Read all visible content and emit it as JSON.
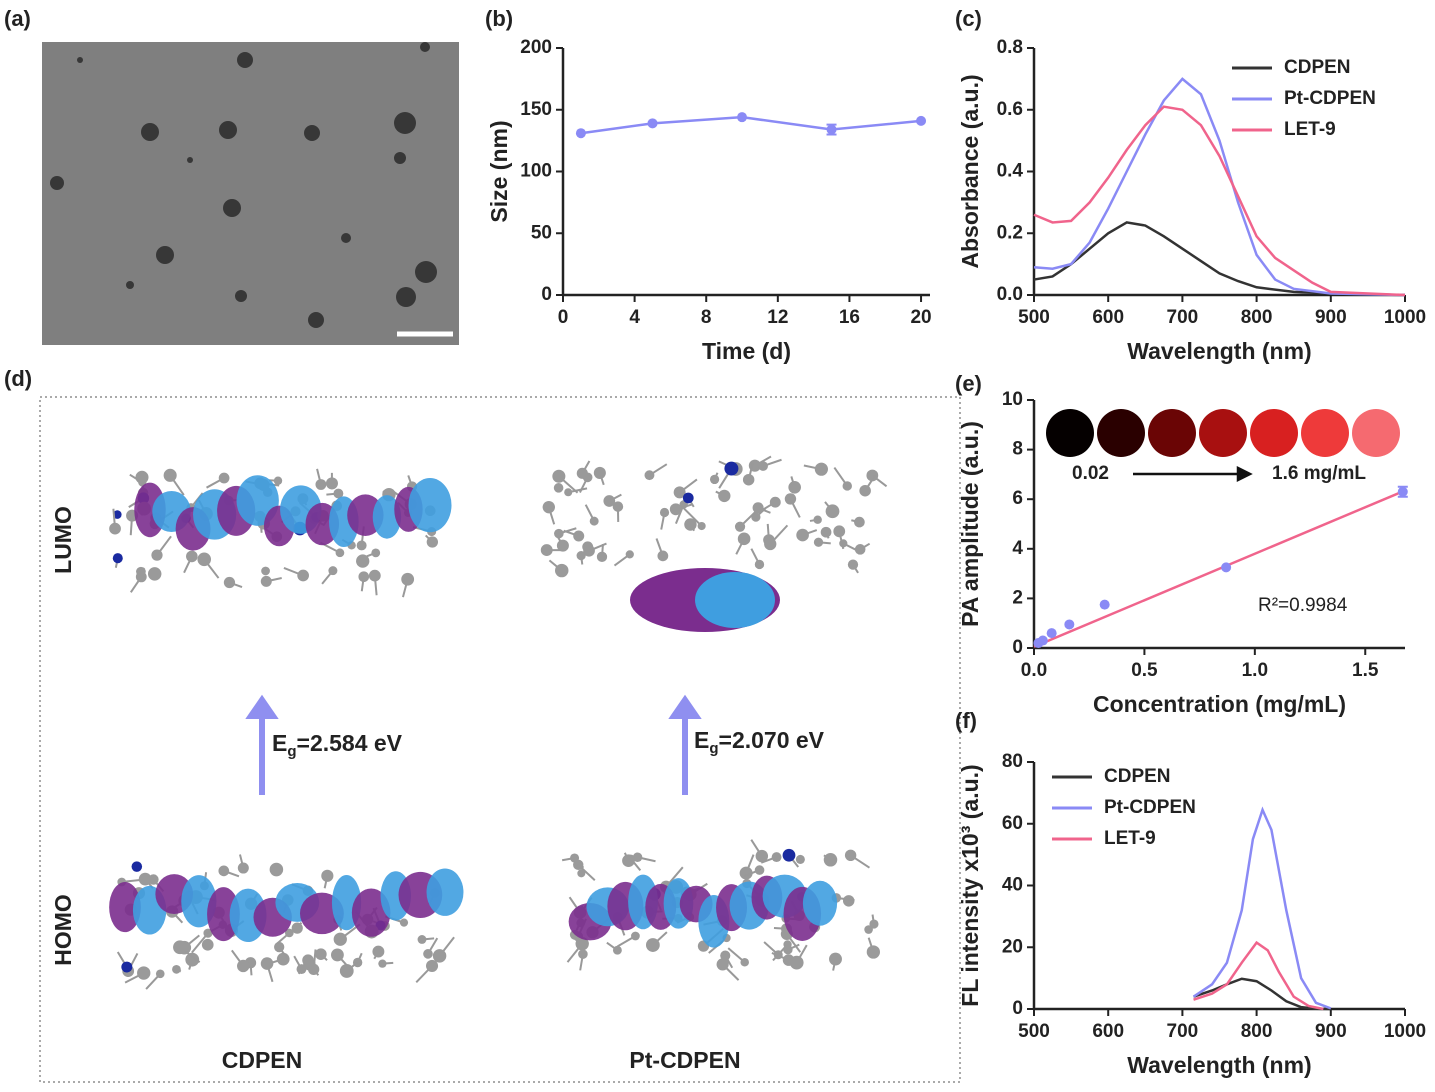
{
  "tem_image": {
    "panel_label": "(a)"
  },
  "orbital_diagram": {
    "panel_label": "(d)",
    "rows": [
      "LUMO",
      "HOMO"
    ],
    "molecules": [
      "CDPEN",
      "Pt-CDPEN"
    ],
    "gaps": [
      {
        "symbol": "E",
        "subscript": "g",
        "text": "=2.584 eV"
      },
      {
        "symbol": "E",
        "subscript": "g",
        "text": "=2.070 eV"
      }
    ]
  },
  "chart_data": [
    {
      "type": "line",
      "panel_label": "(b)",
      "xlabel": "Time (d)",
      "ylabel": "Size (nm)",
      "xlim": [
        0,
        20.5
      ],
      "ylim": [
        0,
        200
      ],
      "xticks": [
        0,
        4,
        8,
        12,
        16,
        20
      ],
      "yticks": [
        0,
        50,
        100,
        150,
        200
      ],
      "series": [
        {
          "color": "#8a8af5",
          "markers": true,
          "x": [
            1,
            5,
            10,
            15,
            20
          ],
          "values": [
            131,
            139,
            144,
            134,
            141
          ],
          "errors": [
            null,
            null,
            null,
            4,
            null
          ]
        }
      ]
    },
    {
      "type": "line",
      "panel_label": "(c)",
      "xlabel": "Wavelength (nm)",
      "ylabel": "Absorbance (a.u.)",
      "xlim": [
        500,
        1000
      ],
      "ylim": [
        0,
        0.8
      ],
      "xticks": [
        500,
        600,
        700,
        800,
        900,
        1000
      ],
      "yticks": [
        {
          "value": 0,
          "label": "0.0"
        },
        0.2,
        0.4,
        0.6,
        0.8
      ],
      "legend": "upper right",
      "series": [
        {
          "name": "CDPEN",
          "color": "#333333",
          "x": [
            500,
            525,
            550,
            575,
            600,
            625,
            650,
            675,
            700,
            725,
            750,
            775,
            800,
            850,
            900,
            1000
          ],
          "values": [
            0.05,
            0.06,
            0.1,
            0.15,
            0.2,
            0.235,
            0.225,
            0.19,
            0.15,
            0.11,
            0.07,
            0.045,
            0.025,
            0.01,
            0.005,
            0
          ]
        },
        {
          "name": "Pt-CDPEN",
          "color": "#8a8af5",
          "x": [
            500,
            525,
            550,
            575,
            600,
            625,
            650,
            675,
            700,
            725,
            750,
            775,
            800,
            825,
            850,
            900,
            1000
          ],
          "values": [
            0.09,
            0.085,
            0.1,
            0.17,
            0.28,
            0.4,
            0.52,
            0.63,
            0.7,
            0.65,
            0.5,
            0.3,
            0.13,
            0.05,
            0.02,
            0.005,
            0
          ]
        },
        {
          "name": "LET-9",
          "color": "#f0648c",
          "x": [
            500,
            525,
            550,
            575,
            600,
            625,
            650,
            675,
            700,
            725,
            750,
            775,
            800,
            825,
            850,
            875,
            900,
            1000
          ],
          "values": [
            0.26,
            0.235,
            0.24,
            0.3,
            0.38,
            0.47,
            0.55,
            0.61,
            0.6,
            0.55,
            0.45,
            0.32,
            0.19,
            0.12,
            0.08,
            0.04,
            0.01,
            0
          ]
        }
      ]
    },
    {
      "type": "scatter",
      "panel_label": "(e)",
      "xlabel": "Concentration (mg/mL)",
      "ylabel": "PA amplitude (a.u.)",
      "xlim": [
        0,
        1.68
      ],
      "ylim": [
        0,
        10
      ],
      "xticks": [
        {
          "value": 0,
          "label": "0.0"
        },
        0.5,
        {
          "value": 1,
          "label": "1.0"
        },
        1.5
      ],
      "yticks": [
        0,
        2,
        4,
        6,
        8,
        10
      ],
      "annotation": "R²=0.9984",
      "inset_labels": [
        "0.02",
        "1.6 mg/mL"
      ],
      "series": [
        {
          "color": "#f0648c",
          "x": [
            0,
            1.68
          ],
          "values": [
            0.05,
            6.35
          ]
        },
        {
          "color": "#8a8af5",
          "markers": true,
          "nolines": true,
          "x": [
            0.02,
            0.04,
            0.08,
            0.16,
            0.32,
            0.87,
            1.67
          ],
          "values": [
            0.2,
            0.3,
            0.6,
            0.95,
            1.75,
            3.25,
            6.3
          ],
          "errors": [
            null,
            null,
            null,
            null,
            null,
            null,
            0.2
          ]
        }
      ]
    },
    {
      "type": "line",
      "panel_label": "(f)",
      "xlabel": "Wavelength (nm)",
      "ylabel": "FL intensity x10³ (a.u.)",
      "xlim": [
        500,
        1000
      ],
      "ylim": [
        0,
        80
      ],
      "xticks": [
        500,
        600,
        700,
        800,
        900,
        1000
      ],
      "yticks": [
        0,
        20,
        40,
        60,
        80
      ],
      "legend": "upper left",
      "series": [
        {
          "name": "CDPEN",
          "color": "#333333",
          "x": [
            715,
            740,
            760,
            780,
            800,
            820,
            840,
            860,
            880,
            900
          ],
          "values": [
            4,
            6,
            8,
            9.8,
            9,
            6,
            2.5,
            0.6,
            0.1,
            0
          ]
        },
        {
          "name": "Pt-CDPEN",
          "color": "#8a8af5",
          "x": [
            715,
            740,
            760,
            780,
            795,
            808,
            820,
            840,
            860,
            880,
            900
          ],
          "values": [
            4,
            8,
            15,
            32,
            55,
            64.5,
            58,
            32,
            10,
            2,
            0.2
          ]
        },
        {
          "name": "LET-9",
          "color": "#f0648c",
          "x": [
            715,
            740,
            760,
            780,
            800,
            815,
            830,
            850,
            870,
            890
          ],
          "values": [
            3,
            5,
            8,
            15,
            21.5,
            19,
            12,
            4,
            1,
            0
          ]
        }
      ]
    }
  ]
}
